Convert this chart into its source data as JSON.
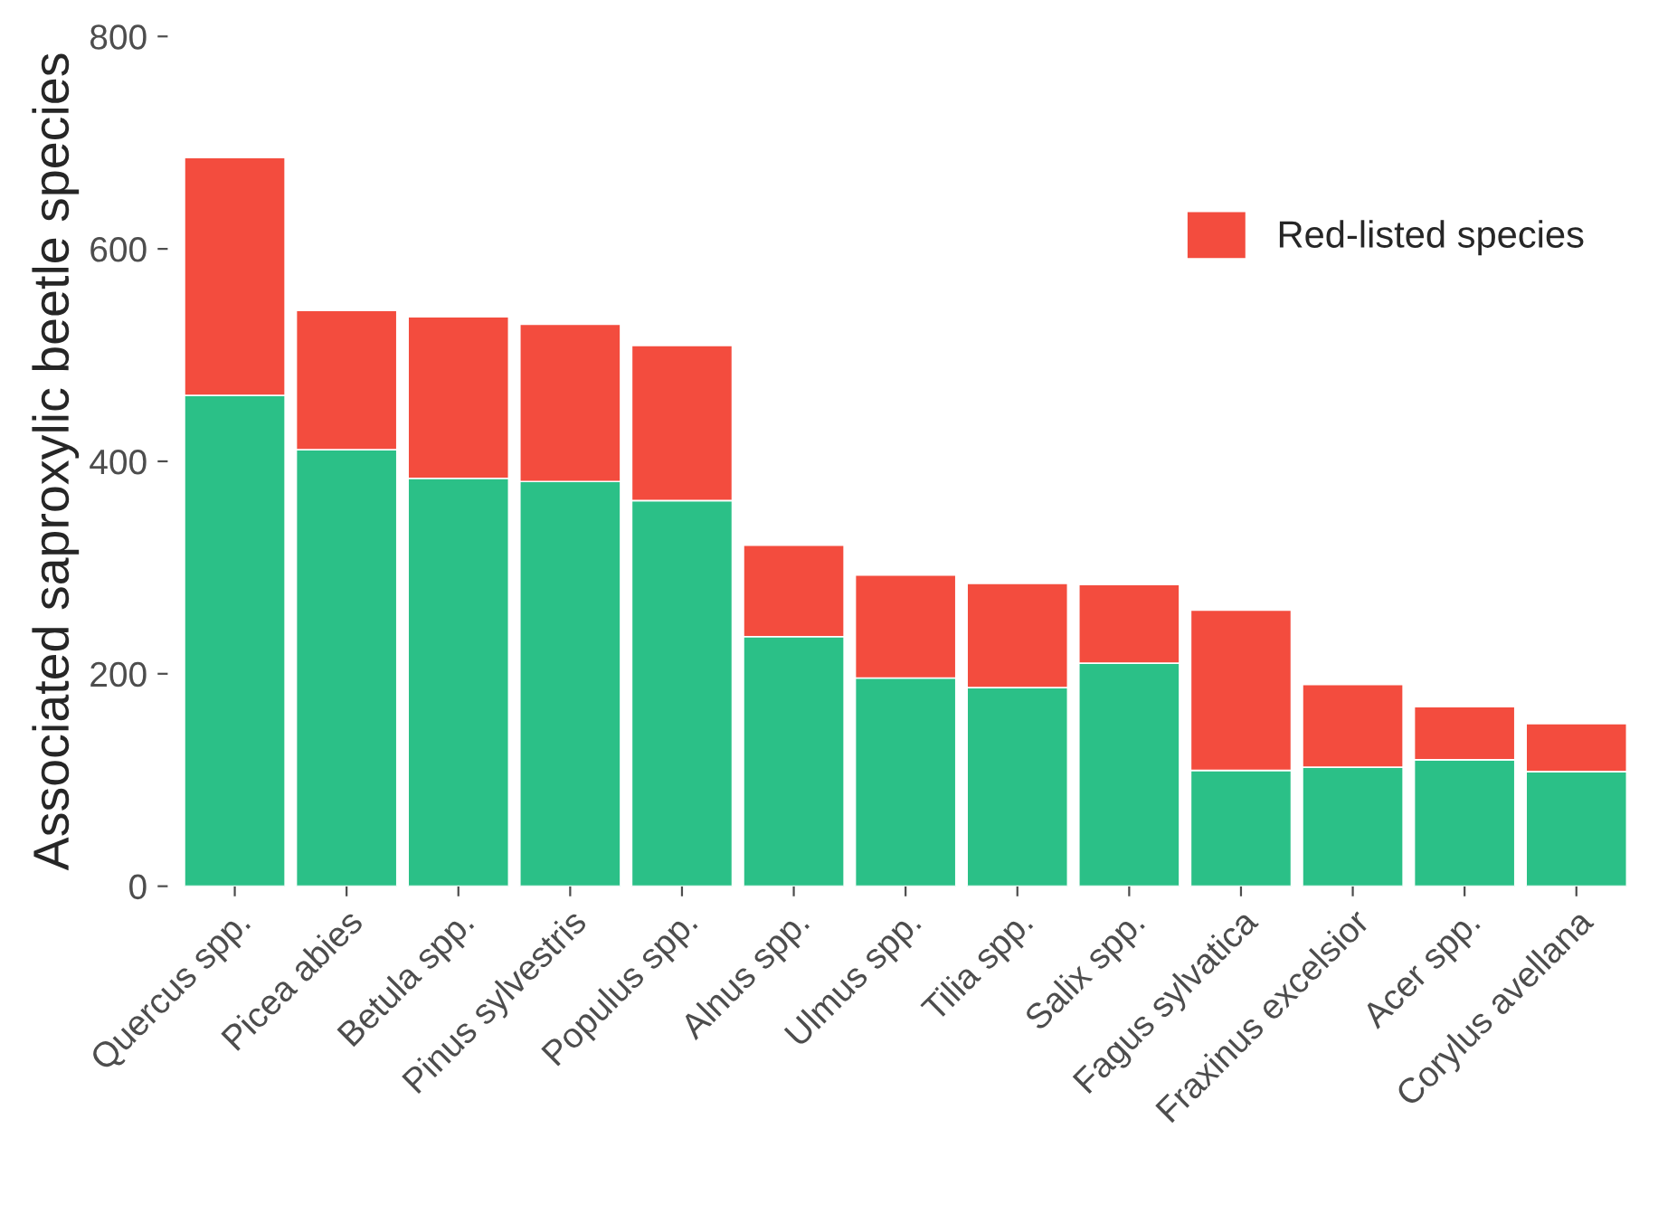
{
  "chart_data": {
    "type": "bar",
    "stacked": true,
    "ylabel": "Associated saproxylic beetle species",
    "categories": [
      "Quercus spp.",
      "Picea abies",
      "Betula spp.",
      "Pinus sylvestris",
      "Populus spp.",
      "Alnus spp.",
      "Ulmus spp.",
      "Tilia spp.",
      "Salix spp.",
      "Fagus sylvatica",
      "Fraxinus excelsior",
      "Acer spp.",
      "Corylus avellana"
    ],
    "series": [
      {
        "color": "#2bc087",
        "values": [
          462,
          411,
          384,
          381,
          363,
          235,
          196,
          187,
          210,
          109,
          112,
          119,
          108
        ]
      },
      {
        "name": "Red-listed species",
        "color": "#f34c3e",
        "values": [
          224,
          131,
          152,
          148,
          146,
          86,
          97,
          98,
          74,
          151,
          78,
          50,
          45
        ]
      }
    ],
    "ylim": [
      0,
      800
    ],
    "yticks": [
      0,
      200,
      400,
      600,
      800
    ],
    "grid": false,
    "legend": "top right"
  }
}
